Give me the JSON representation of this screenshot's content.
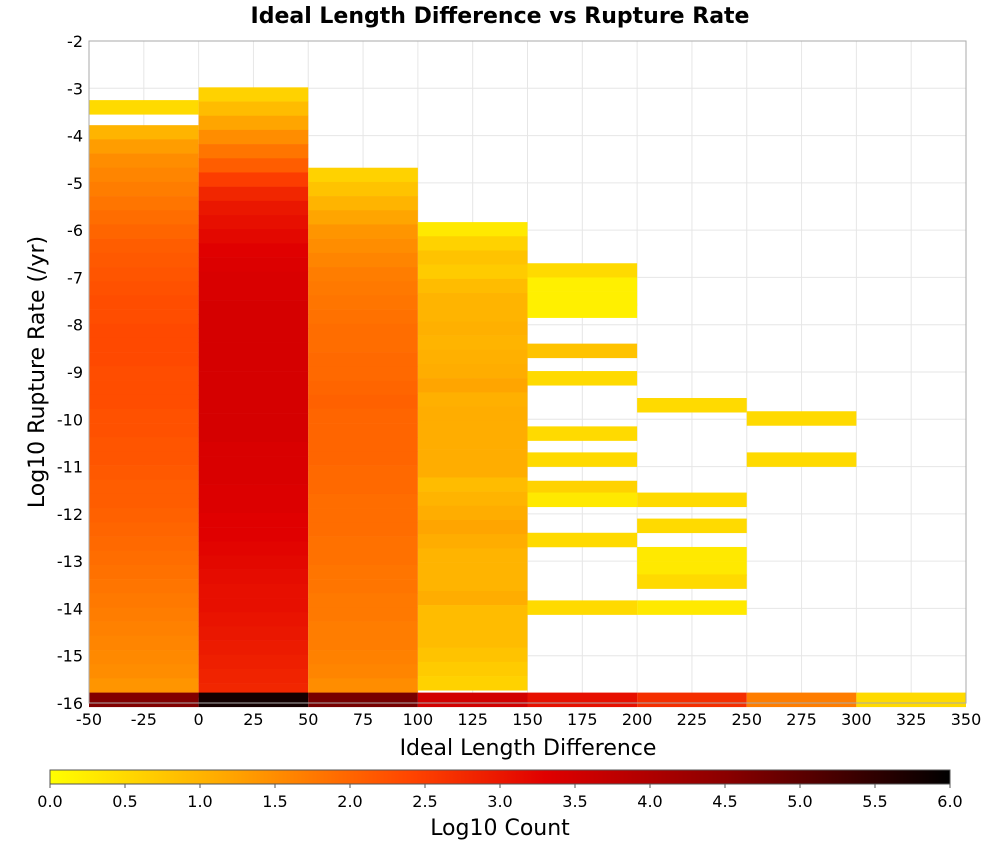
{
  "chart_data": {
    "type": "heatmap",
    "title": "Ideal Length Difference vs Rupture Rate",
    "xlabel": "Ideal Length Difference",
    "ylabel": "Log10 Rupture Rate (/yr)",
    "xlim": [
      -50,
      350
    ],
    "ylim": [
      -16,
      -2
    ],
    "x_ticks": [
      "-50",
      "-25",
      "0",
      "25",
      "50",
      "75",
      "100",
      "125",
      "150",
      "175",
      "200",
      "225",
      "250",
      "275",
      "300",
      "325",
      "350"
    ],
    "y_ticks": [
      "-2",
      "-3",
      "-4",
      "-5",
      "-6",
      "-7",
      "-8",
      "-9",
      "-10",
      "-11",
      "-12",
      "-13",
      "-14",
      "-15",
      "-16"
    ],
    "x_bin_width": 50,
    "y_bin_height": 0.3,
    "colorbar": {
      "label": "Log10 Count",
      "range": [
        0,
        6
      ],
      "ticks": [
        "0.0",
        "0.5",
        "1.0",
        "1.5",
        "2.0",
        "2.5",
        "3.0",
        "3.5",
        "4.0",
        "4.5",
        "5.0",
        "5.5",
        "6.0"
      ],
      "stops": [
        "#ffff00",
        "#ffa500",
        "#ff4500",
        "#e00000",
        "#8b0000",
        "#000000"
      ]
    },
    "columns": [
      {
        "x": -25,
        "cells": [
          {
            "y": -3.4,
            "v": 0.5
          },
          {
            "y": -3.93,
            "v": 1.0
          },
          {
            "y": -4.23,
            "v": 1.3
          },
          {
            "y": -4.53,
            "v": 1.5
          },
          {
            "y": -4.83,
            "v": 1.6
          },
          {
            "y": -5.13,
            "v": 1.7
          },
          {
            "y": -5.43,
            "v": 1.8
          },
          {
            "y": -5.73,
            "v": 1.9
          },
          {
            "y": -6.03,
            "v": 2.0
          },
          {
            "y": -6.33,
            "v": 2.1
          },
          {
            "y": -6.63,
            "v": 2.15
          },
          {
            "y": -6.93,
            "v": 2.2
          },
          {
            "y": -7.23,
            "v": 2.25
          },
          {
            "y": -7.53,
            "v": 2.3
          },
          {
            "y": -7.83,
            "v": 2.3
          },
          {
            "y": -8.13,
            "v": 2.35
          },
          {
            "y": -8.43,
            "v": 2.35
          },
          {
            "y": -8.73,
            "v": 2.35
          },
          {
            "y": -9.03,
            "v": 2.3
          },
          {
            "y": -9.33,
            "v": 2.3
          },
          {
            "y": -9.63,
            "v": 2.3
          },
          {
            "y": -9.93,
            "v": 2.25
          },
          {
            "y": -10.23,
            "v": 2.25
          },
          {
            "y": -10.53,
            "v": 2.2
          },
          {
            "y": -10.83,
            "v": 2.2
          },
          {
            "y": -11.13,
            "v": 2.15
          },
          {
            "y": -11.43,
            "v": 2.1
          },
          {
            "y": -11.73,
            "v": 2.1
          },
          {
            "y": -12.03,
            "v": 2.05
          },
          {
            "y": -12.33,
            "v": 2.0
          },
          {
            "y": -12.63,
            "v": 1.95
          },
          {
            "y": -12.93,
            "v": 1.9
          },
          {
            "y": -13.23,
            "v": 1.85
          },
          {
            "y": -13.53,
            "v": 1.8
          },
          {
            "y": -13.83,
            "v": 1.75
          },
          {
            "y": -14.13,
            "v": 1.7
          },
          {
            "y": -14.43,
            "v": 1.65
          },
          {
            "y": -14.73,
            "v": 1.6
          },
          {
            "y": -15.03,
            "v": 1.55
          },
          {
            "y": -15.33,
            "v": 1.5
          },
          {
            "y": -15.63,
            "v": 1.4
          },
          {
            "y": -15.93,
            "v": 4.6
          }
        ]
      },
      {
        "x": 25,
        "cells": [
          {
            "y": -3.13,
            "v": 0.6
          },
          {
            "y": -3.43,
            "v": 0.9
          },
          {
            "y": -3.73,
            "v": 1.2
          },
          {
            "y": -4.03,
            "v": 1.5
          },
          {
            "y": -4.33,
            "v": 1.8
          },
          {
            "y": -4.63,
            "v": 2.1
          },
          {
            "y": -4.93,
            "v": 2.5
          },
          {
            "y": -5.23,
            "v": 2.8
          },
          {
            "y": -5.53,
            "v": 3.0
          },
          {
            "y": -5.83,
            "v": 3.1
          },
          {
            "y": -6.13,
            "v": 3.2
          },
          {
            "y": -6.43,
            "v": 3.3
          },
          {
            "y": -6.73,
            "v": 3.35
          },
          {
            "y": -7.03,
            "v": 3.4
          },
          {
            "y": -7.33,
            "v": 3.4
          },
          {
            "y": -7.63,
            "v": 3.45
          },
          {
            "y": -7.93,
            "v": 3.45
          },
          {
            "y": -8.23,
            "v": 3.45
          },
          {
            "y": -8.53,
            "v": 3.45
          },
          {
            "y": -8.83,
            "v": 3.45
          },
          {
            "y": -9.13,
            "v": 3.45
          },
          {
            "y": -9.43,
            "v": 3.45
          },
          {
            "y": -9.73,
            "v": 3.45
          },
          {
            "y": -10.03,
            "v": 3.45
          },
          {
            "y": -10.33,
            "v": 3.45
          },
          {
            "y": -10.63,
            "v": 3.4
          },
          {
            "y": -10.93,
            "v": 3.4
          },
          {
            "y": -11.23,
            "v": 3.4
          },
          {
            "y": -11.53,
            "v": 3.35
          },
          {
            "y": -11.83,
            "v": 3.35
          },
          {
            "y": -12.13,
            "v": 3.3
          },
          {
            "y": -12.43,
            "v": 3.3
          },
          {
            "y": -12.73,
            "v": 3.25
          },
          {
            "y": -13.03,
            "v": 3.2
          },
          {
            "y": -13.33,
            "v": 3.15
          },
          {
            "y": -13.63,
            "v": 3.1
          },
          {
            "y": -13.93,
            "v": 3.1
          },
          {
            "y": -14.23,
            "v": 3.05
          },
          {
            "y": -14.53,
            "v": 3.0
          },
          {
            "y": -14.83,
            "v": 2.95
          },
          {
            "y": -15.13,
            "v": 2.9
          },
          {
            "y": -15.43,
            "v": 2.85
          },
          {
            "y": -15.73,
            "v": 2.8
          },
          {
            "y": -15.93,
            "v": 5.8
          }
        ]
      },
      {
        "x": 75,
        "cells": [
          {
            "y": -4.83,
            "v": 0.6
          },
          {
            "y": -5.13,
            "v": 0.8
          },
          {
            "y": -5.43,
            "v": 1.0
          },
          {
            "y": -5.73,
            "v": 1.2
          },
          {
            "y": -6.03,
            "v": 1.4
          },
          {
            "y": -6.33,
            "v": 1.5
          },
          {
            "y": -6.63,
            "v": 1.6
          },
          {
            "y": -6.93,
            "v": 1.7
          },
          {
            "y": -7.23,
            "v": 1.75
          },
          {
            "y": -7.53,
            "v": 1.8
          },
          {
            "y": -7.83,
            "v": 1.85
          },
          {
            "y": -8.13,
            "v": 1.9
          },
          {
            "y": -8.43,
            "v": 1.9
          },
          {
            "y": -8.73,
            "v": 1.95
          },
          {
            "y": -9.03,
            "v": 1.95
          },
          {
            "y": -9.33,
            "v": 2.0
          },
          {
            "y": -9.63,
            "v": 2.05
          },
          {
            "y": -9.93,
            "v": 2.0
          },
          {
            "y": -10.23,
            "v": 2.0
          },
          {
            "y": -10.53,
            "v": 2.0
          },
          {
            "y": -10.83,
            "v": 2.0
          },
          {
            "y": -11.13,
            "v": 1.95
          },
          {
            "y": -11.43,
            "v": 1.95
          },
          {
            "y": -11.73,
            "v": 1.9
          },
          {
            "y": -12.03,
            "v": 1.9
          },
          {
            "y": -12.33,
            "v": 1.9
          },
          {
            "y": -12.63,
            "v": 1.85
          },
          {
            "y": -12.93,
            "v": 1.85
          },
          {
            "y": -13.23,
            "v": 1.8
          },
          {
            "y": -13.53,
            "v": 1.8
          },
          {
            "y": -13.83,
            "v": 1.75
          },
          {
            "y": -14.13,
            "v": 1.75
          },
          {
            "y": -14.43,
            "v": 1.7
          },
          {
            "y": -14.73,
            "v": 1.7
          },
          {
            "y": -15.03,
            "v": 1.65
          },
          {
            "y": -15.33,
            "v": 1.6
          },
          {
            "y": -15.63,
            "v": 1.5
          },
          {
            "y": -15.93,
            "v": 4.7
          }
        ]
      },
      {
        "x": 125,
        "cells": [
          {
            "y": -5.98,
            "v": 0.3
          },
          {
            "y": -6.28,
            "v": 0.6
          },
          {
            "y": -6.58,
            "v": 0.8
          },
          {
            "y": -6.88,
            "v": 0.7
          },
          {
            "y": -7.18,
            "v": 0.9
          },
          {
            "y": -7.48,
            "v": 1.0
          },
          {
            "y": -7.78,
            "v": 1.0
          },
          {
            "y": -8.08,
            "v": 1.05
          },
          {
            "y": -8.38,
            "v": 1.0
          },
          {
            "y": -8.68,
            "v": 1.05
          },
          {
            "y": -8.98,
            "v": 1.1
          },
          {
            "y": -9.28,
            "v": 1.2
          },
          {
            "y": -9.58,
            "v": 1.05
          },
          {
            "y": -9.88,
            "v": 1.1
          },
          {
            "y": -10.18,
            "v": 1.1
          },
          {
            "y": -10.48,
            "v": 1.1
          },
          {
            "y": -10.78,
            "v": 1.1
          },
          {
            "y": -11.08,
            "v": 1.1
          },
          {
            "y": -11.38,
            "v": 0.9
          },
          {
            "y": -11.68,
            "v": 1.0
          },
          {
            "y": -11.98,
            "v": 1.1
          },
          {
            "y": -12.28,
            "v": 1.2
          },
          {
            "y": -12.58,
            "v": 1.1
          },
          {
            "y": -12.88,
            "v": 1.0
          },
          {
            "y": -13.18,
            "v": 1.0
          },
          {
            "y": -13.48,
            "v": 1.0
          },
          {
            "y": -13.78,
            "v": 1.1
          },
          {
            "y": -14.08,
            "v": 0.9
          },
          {
            "y": -14.38,
            "v": 0.9
          },
          {
            "y": -14.68,
            "v": 0.9
          },
          {
            "y": -14.98,
            "v": 0.8
          },
          {
            "y": -15.28,
            "v": 0.7
          },
          {
            "y": -15.58,
            "v": 0.6
          },
          {
            "y": -15.93,
            "v": 3.5
          }
        ]
      },
      {
        "x": 175,
        "cells": [
          {
            "y": -6.85,
            "v": 0.5
          },
          {
            "y": -7.15,
            "v": 0.2
          },
          {
            "y": -7.45,
            "v": 0.2
          },
          {
            "y": -7.7,
            "v": 0.2
          },
          {
            "y": -8.55,
            "v": 0.8
          },
          {
            "y": -9.13,
            "v": 0.5
          },
          {
            "y": -10.3,
            "v": 0.5
          },
          {
            "y": -10.85,
            "v": 0.5
          },
          {
            "y": -11.45,
            "v": 0.6
          },
          {
            "y": -11.7,
            "v": 0.3
          },
          {
            "y": -12.55,
            "v": 0.5
          },
          {
            "y": -13.98,
            "v": 0.5
          },
          {
            "y": -15.93,
            "v": 3.1
          }
        ]
      },
      {
        "x": 225,
        "cells": [
          {
            "y": -9.7,
            "v": 0.5
          },
          {
            "y": -11.7,
            "v": 0.5
          },
          {
            "y": -12.25,
            "v": 0.5
          },
          {
            "y": -12.85,
            "v": 0.3
          },
          {
            "y": -13.15,
            "v": 0.3
          },
          {
            "y": -13.43,
            "v": 0.5
          },
          {
            "y": -13.98,
            "v": 0.3
          },
          {
            "y": -15.93,
            "v": 2.7
          }
        ]
      },
      {
        "x": 275,
        "cells": [
          {
            "y": -9.98,
            "v": 0.5
          },
          {
            "y": -10.85,
            "v": 0.5
          },
          {
            "y": -15.93,
            "v": 1.7
          }
        ]
      },
      {
        "x": 325,
        "cells": [
          {
            "y": -15.93,
            "v": 0.5
          }
        ]
      }
    ]
  }
}
